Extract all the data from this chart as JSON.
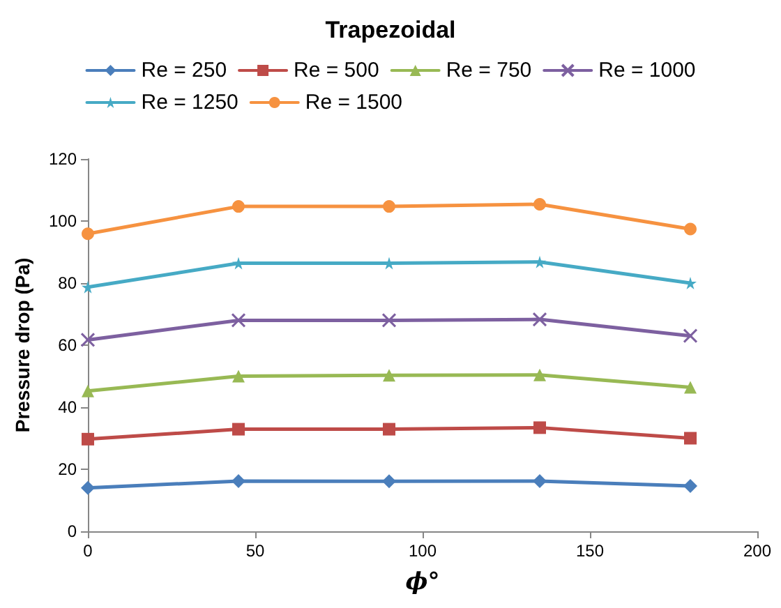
{
  "chart_data": {
    "type": "line",
    "title": "Trapezoidal",
    "xlabel": "ϕ°",
    "ylabel": "Pressure drop (Pa)",
    "x": [
      0,
      45,
      90,
      135,
      180
    ],
    "xlim": [
      0,
      200
    ],
    "xticks": [
      0,
      50,
      100,
      150,
      200
    ],
    "ylim": [
      0,
      120
    ],
    "yticks": [
      0,
      20,
      40,
      60,
      80,
      100,
      120
    ],
    "grid": false,
    "legend": "top",
    "line_style": "solid",
    "series": [
      {
        "name": "Re = 250",
        "color": "#4a7ebb",
        "marker": "diamond",
        "values": [
          14,
          16.2,
          16.1,
          16.2,
          14.6
        ]
      },
      {
        "name": "Re = 500",
        "color": "#be4b48",
        "marker": "square",
        "values": [
          29.7,
          32.9,
          32.9,
          33.4,
          30
        ]
      },
      {
        "name": "Re = 750",
        "color": "#98b954",
        "marker": "triangle",
        "values": [
          45.2,
          50,
          50.3,
          50.4,
          46.4
        ]
      },
      {
        "name": "Re = 1000",
        "color": "#7d60a0",
        "marker": "cross",
        "values": [
          61.7,
          68,
          68,
          68.3,
          63
        ]
      },
      {
        "name": "Re = 1250",
        "color": "#46aac5",
        "marker": "star",
        "values": [
          78.7,
          86.4,
          86.4,
          86.8,
          80
        ]
      },
      {
        "name": "Re = 1500",
        "color": "#f69240",
        "marker": "circle",
        "values": [
          95.9,
          104.7,
          104.7,
          105.4,
          97.4
        ]
      }
    ]
  }
}
